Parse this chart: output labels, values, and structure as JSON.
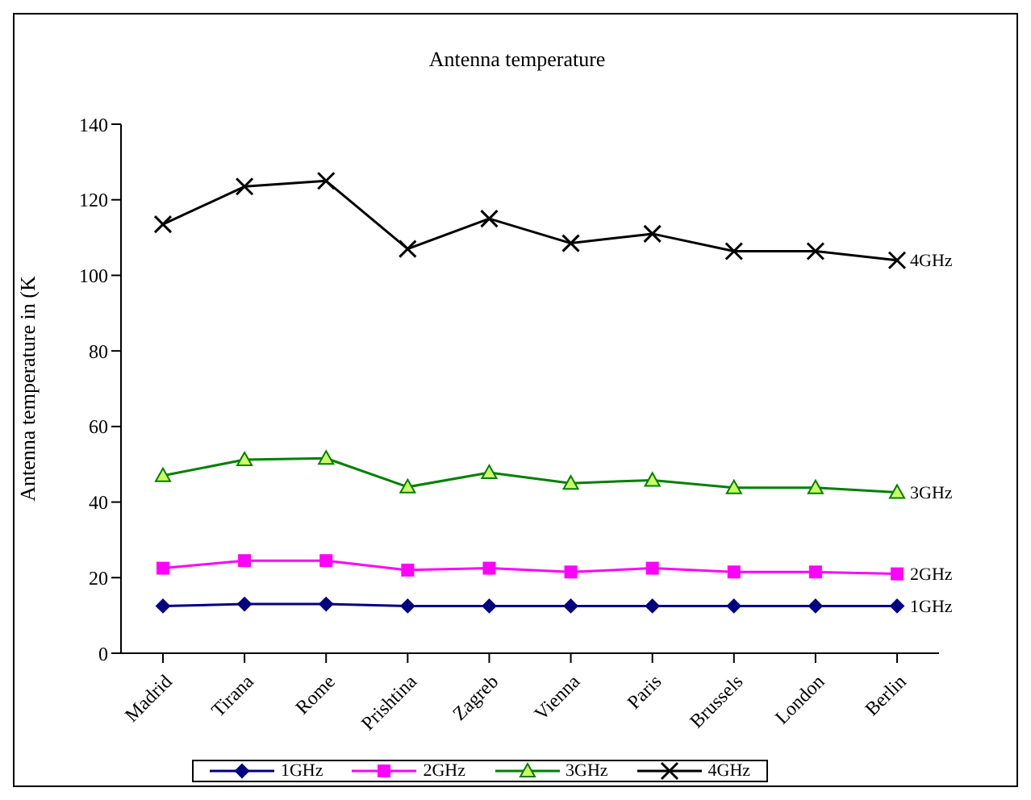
{
  "chart_data": {
    "type": "line",
    "title": "Antenna temperature",
    "ylabel": "Antenna temperature in (K",
    "categories": [
      "Madrid",
      "Tirana",
      "Rome",
      "Prishtina",
      "Zagreb",
      "Vienna",
      "Paris",
      "Brussels",
      "London",
      "Berlin"
    ],
    "series": [
      {
        "name": "1GHz",
        "color": "#000080",
        "marker": "diamond",
        "values": [
          12.5,
          13,
          13,
          12.5,
          12.5,
          12.5,
          12.5,
          12.5,
          12.5,
          12.5
        ]
      },
      {
        "name": "2GHz",
        "color": "#ff00ff",
        "marker": "square",
        "values": [
          22.5,
          24.5,
          24.5,
          22,
          22.5,
          21.5,
          22.5,
          21.5,
          21.5,
          21
        ]
      },
      {
        "name": "3GHz",
        "color": "#008000",
        "marker": "triangle",
        "values": [
          47,
          51.2,
          51.6,
          44,
          47.8,
          45,
          45.8,
          43.8,
          43.8,
          42.6
        ]
      },
      {
        "name": "4GHz",
        "color": "#000000",
        "marker": "cross",
        "values": [
          113.5,
          123.5,
          125,
          107,
          115,
          108.5,
          111,
          106.4,
          106.4,
          104
        ]
      }
    ],
    "ylim": [
      0,
      140
    ],
    "yticks": [
      0,
      20,
      40,
      60,
      80,
      100,
      120,
      140
    ],
    "grid": false,
    "legend": "bottom",
    "line_style": "solid",
    "annotations": [
      {
        "text": "4GHz",
        "x": "Berlin",
        "y": 104
      },
      {
        "text": "3GHz",
        "x": "Berlin",
        "y": 42.6
      },
      {
        "text": "2GHz",
        "x": "Berlin",
        "y": 21
      },
      {
        "text": "1GHz",
        "x": "Berlin",
        "y": 12.5
      }
    ]
  }
}
